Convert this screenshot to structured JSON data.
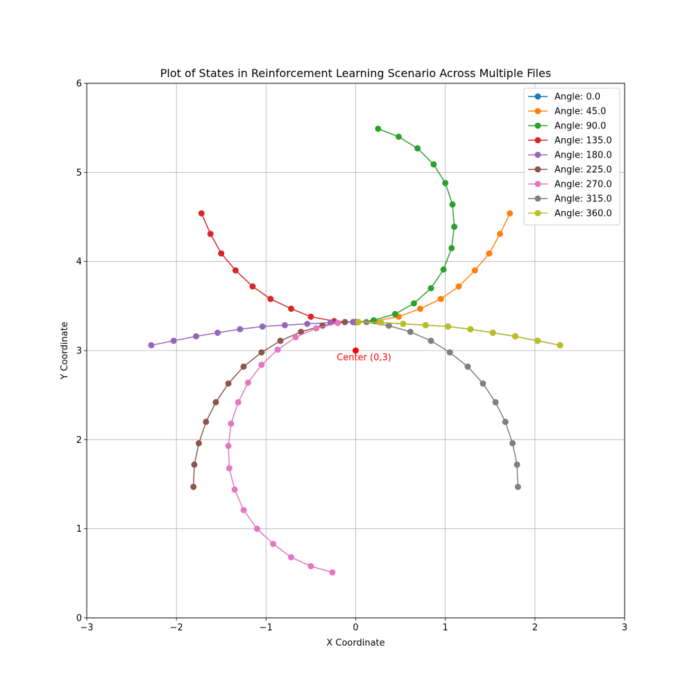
{
  "chart_data": {
    "type": "line",
    "title": "Plot of States in Reinforcement Learning Scenario Across Multiple Files",
    "xlabel": "X Coordinate",
    "ylabel": "Y Coordinate",
    "xlim": [
      -3,
      3
    ],
    "ylim": [
      0,
      6
    ],
    "xticks": [
      -3,
      -2,
      -1,
      0,
      1,
      2,
      3
    ],
    "yticks": [
      0,
      1,
      2,
      3,
      4,
      5,
      6
    ],
    "xtick_labels": [
      "−3",
      "−2",
      "−1",
      "0",
      "1",
      "2",
      "3"
    ],
    "ytick_labels": [
      "0",
      "1",
      "2",
      "3",
      "4",
      "5",
      "6"
    ],
    "grid": true,
    "legend_position": "top-right",
    "annotation": {
      "text": "Center (0,3)",
      "x": 0,
      "y": 3,
      "color": "#ff0000"
    },
    "series": [
      {
        "name": "Angle: 0.0",
        "color": "#1f77b4",
        "x": [
          0.03,
          0.28,
          0.53,
          0.78,
          1.03,
          1.28,
          1.53,
          1.78,
          2.03,
          2.28
        ],
        "y": [
          3.32,
          3.315,
          3.3,
          3.285,
          3.27,
          3.24,
          3.2,
          3.16,
          3.11,
          3.06
        ]
      },
      {
        "name": "Angle: 45.0",
        "color": "#ff7f0e",
        "x": [
          0.02,
          0.21,
          0.48,
          0.72,
          0.95,
          1.15,
          1.33,
          1.49,
          1.61,
          1.72
        ],
        "y": [
          3.32,
          3.33,
          3.38,
          3.47,
          3.58,
          3.72,
          3.9,
          4.09,
          4.31,
          4.54
        ]
      },
      {
        "name": "Angle: 90.0",
        "color": "#2ca02c",
        "x": [
          0.01,
          0.2,
          0.44,
          0.65,
          0.84,
          0.98,
          1.07,
          1.1,
          1.08,
          1.0,
          0.87,
          0.69,
          0.48,
          0.25
        ],
        "y": [
          3.32,
          3.34,
          3.41,
          3.53,
          3.7,
          3.91,
          4.15,
          4.39,
          4.64,
          4.88,
          5.09,
          5.27,
          5.4,
          5.49
        ]
      },
      {
        "name": "Angle: 135.0",
        "color": "#d62728",
        "x": [
          -0.02,
          -0.24,
          -0.5,
          -0.72,
          -0.95,
          -1.15,
          -1.34,
          -1.5,
          -1.62,
          -1.72
        ],
        "y": [
          3.32,
          3.33,
          3.38,
          3.47,
          3.58,
          3.72,
          3.9,
          4.09,
          4.31,
          4.54
        ]
      },
      {
        "name": "Angle: 180.0",
        "color": "#9467bd",
        "x": [
          -0.03,
          -0.28,
          -0.54,
          -0.79,
          -1.04,
          -1.29,
          -1.54,
          -1.78,
          -2.03,
          -2.28
        ],
        "y": [
          3.32,
          3.315,
          3.3,
          3.285,
          3.27,
          3.24,
          3.2,
          3.16,
          3.11,
          3.06
        ]
      },
      {
        "name": "Angle: 225.0",
        "color": "#8c564b",
        "x": [
          -0.12,
          -0.37,
          -0.61,
          -0.84,
          -1.05,
          -1.25,
          -1.42,
          -1.56,
          -1.67,
          -1.75,
          -1.8,
          -1.81
        ],
        "y": [
          3.32,
          3.28,
          3.21,
          3.11,
          2.98,
          2.82,
          2.63,
          2.42,
          2.2,
          1.96,
          1.72,
          1.47
        ]
      },
      {
        "name": "Angle: 270.0",
        "color": "#e377c2",
        "x": [
          -0.2,
          -0.44,
          -0.67,
          -0.87,
          -1.05,
          -1.2,
          -1.31,
          -1.39,
          -1.42,
          -1.41,
          -1.35,
          -1.25,
          -1.1,
          -0.92,
          -0.72,
          -0.5,
          -0.26
        ],
        "y": [
          3.31,
          3.25,
          3.15,
          3.01,
          2.84,
          2.64,
          2.42,
          2.18,
          1.93,
          1.68,
          1.44,
          1.21,
          1.0,
          0.83,
          0.68,
          0.58,
          0.51
        ]
      },
      {
        "name": "Angle: 315.0",
        "color": "#7f7f7f",
        "x": [
          0.12,
          0.37,
          0.61,
          0.84,
          1.05,
          1.25,
          1.42,
          1.56,
          1.67,
          1.75,
          1.8,
          1.81
        ],
        "y": [
          3.32,
          3.28,
          3.21,
          3.11,
          2.98,
          2.82,
          2.63,
          2.42,
          2.2,
          1.96,
          1.72,
          1.47
        ]
      },
      {
        "name": "Angle: 360.0",
        "color": "#bcbd22",
        "x": [
          0.03,
          0.28,
          0.53,
          0.78,
          1.03,
          1.28,
          1.53,
          1.78,
          2.03,
          2.28
        ],
        "y": [
          3.32,
          3.315,
          3.3,
          3.285,
          3.27,
          3.24,
          3.2,
          3.16,
          3.11,
          3.06
        ]
      }
    ]
  }
}
